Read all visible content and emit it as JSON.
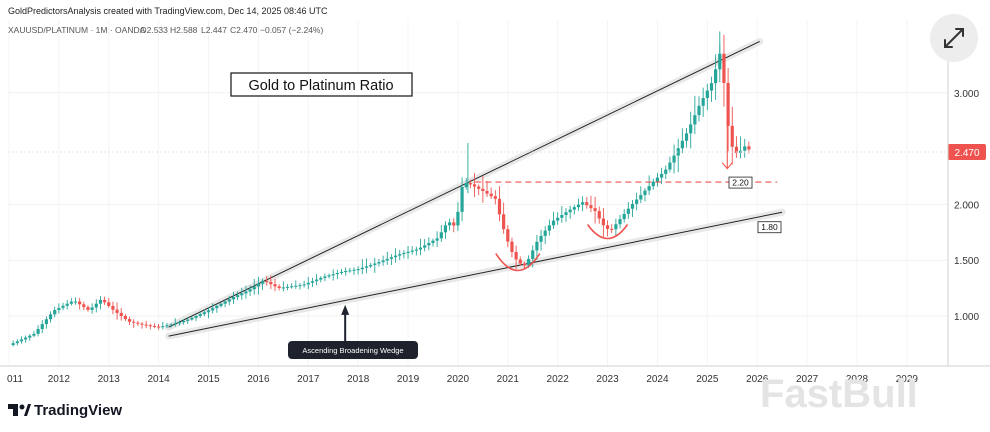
{
  "header": {
    "attribution": "GoldPredictorsAnalysis created with TradingView.com, Dec 14, 2025 08:46 UTC",
    "symbol_line": "XAUUSD/PLATINUM · 1M · OANDA",
    "open": "O2.533",
    "high": "H2.588",
    "low": "L2.447",
    "close": "C2.470",
    "change": "−0.057 (−2.24%)"
  },
  "brand": {
    "logo_text": "TradingView",
    "watermark": "FastBull"
  },
  "colors": {
    "up": "#26a69a",
    "down": "#ef5350",
    "hline": "#ef5350",
    "trend": "#222222"
  },
  "icons": {
    "expand": "expand-arrows-icon",
    "logo": "tradingview-logo-icon"
  },
  "chart_data": {
    "type": "candlestick",
    "title": "Gold to Platinum Ratio",
    "frequency": "monthly",
    "x_range": [
      "2011",
      "2029"
    ],
    "ylim": [
      0.6,
      3.6
    ],
    "y_ticks": [
      "1.000",
      "1.500",
      "2.000",
      "3.000"
    ],
    "x_ticks": [
      "011",
      "2012",
      "2013",
      "2014",
      "2015",
      "2016",
      "2017",
      "2018",
      "2019",
      "2020",
      "2021",
      "2022",
      "2023",
      "2024",
      "2025",
      "2026",
      "2027",
      "2028",
      "2029"
    ],
    "last_price": "2.470",
    "path": [
      [
        2011.0,
        0.74
      ],
      [
        2011.5,
        0.84
      ],
      [
        2011.9,
        1.05
      ],
      [
        2012.3,
        1.14
      ],
      [
        2012.6,
        1.05
      ],
      [
        2012.85,
        1.15
      ],
      [
        2013.1,
        1.05
      ],
      [
        2013.4,
        0.95
      ],
      [
        2013.7,
        0.92
      ],
      [
        2014.0,
        0.9
      ],
      [
        2014.3,
        0.93
      ],
      [
        2014.6,
        0.97
      ],
      [
        2015.0,
        1.05
      ],
      [
        2015.5,
        1.17
      ],
      [
        2015.8,
        1.23
      ],
      [
        2016.1,
        1.32
      ],
      [
        2016.4,
        1.25
      ],
      [
        2016.9,
        1.28
      ],
      [
        2017.3,
        1.35
      ],
      [
        2017.7,
        1.4
      ],
      [
        2018.0,
        1.42
      ],
      [
        2018.4,
        1.48
      ],
      [
        2018.8,
        1.55
      ],
      [
        2019.2,
        1.6
      ],
      [
        2019.6,
        1.7
      ],
      [
        2019.8,
        1.85
      ],
      [
        2019.95,
        1.8
      ],
      [
        2020.1,
        2.2
      ],
      [
        2020.25,
        2.18
      ],
      [
        2020.5,
        2.12
      ],
      [
        2020.75,
        2.05
      ],
      [
        2020.9,
        1.8
      ],
      [
        2021.05,
        1.6
      ],
      [
        2021.2,
        1.48
      ],
      [
        2021.35,
        1.45
      ],
      [
        2021.6,
        1.68
      ],
      [
        2021.9,
        1.85
      ],
      [
        2022.2,
        1.94
      ],
      [
        2022.5,
        2.02
      ],
      [
        2022.75,
        1.94
      ],
      [
        2022.9,
        1.82
      ],
      [
        2023.05,
        1.76
      ],
      [
        2023.2,
        1.84
      ],
      [
        2023.45,
        1.98
      ],
      [
        2023.7,
        2.1
      ],
      [
        2023.95,
        2.22
      ],
      [
        2024.15,
        2.3
      ],
      [
        2024.35,
        2.45
      ],
      [
        2024.6,
        2.65
      ],
      [
        2024.85,
        2.9
      ],
      [
        2025.1,
        3.1
      ],
      [
        2025.25,
        3.35
      ],
      [
        2025.32,
        3.15
      ],
      [
        2025.45,
        2.55
      ],
      [
        2025.6,
        2.45
      ],
      [
        2025.75,
        2.52
      ],
      [
        2025.9,
        2.47
      ]
    ],
    "trendlines": [
      {
        "name": "upper",
        "from": [
          2014.2,
          0.9
        ],
        "to": [
          2026.05,
          3.46
        ]
      },
      {
        "name": "lower",
        "from": [
          2014.2,
          0.82
        ],
        "to": [
          2026.5,
          1.93
        ]
      }
    ],
    "levels": [
      {
        "value": 2.2,
        "label": "2.20",
        "style": "dashed"
      },
      {
        "value": 1.8,
        "label": "1.80",
        "style": "marker"
      }
    ],
    "annotations": [
      {
        "text": "Ascending Broadening Wedge",
        "anchor": [
          2017.8,
          1.1
        ]
      },
      {
        "text": "Cup (red arc) 2021",
        "anchor": [
          2021.2,
          1.45
        ]
      },
      {
        "text": "Cup (red arc) 2023",
        "anchor": [
          2023.0,
          1.75
        ]
      }
    ]
  }
}
